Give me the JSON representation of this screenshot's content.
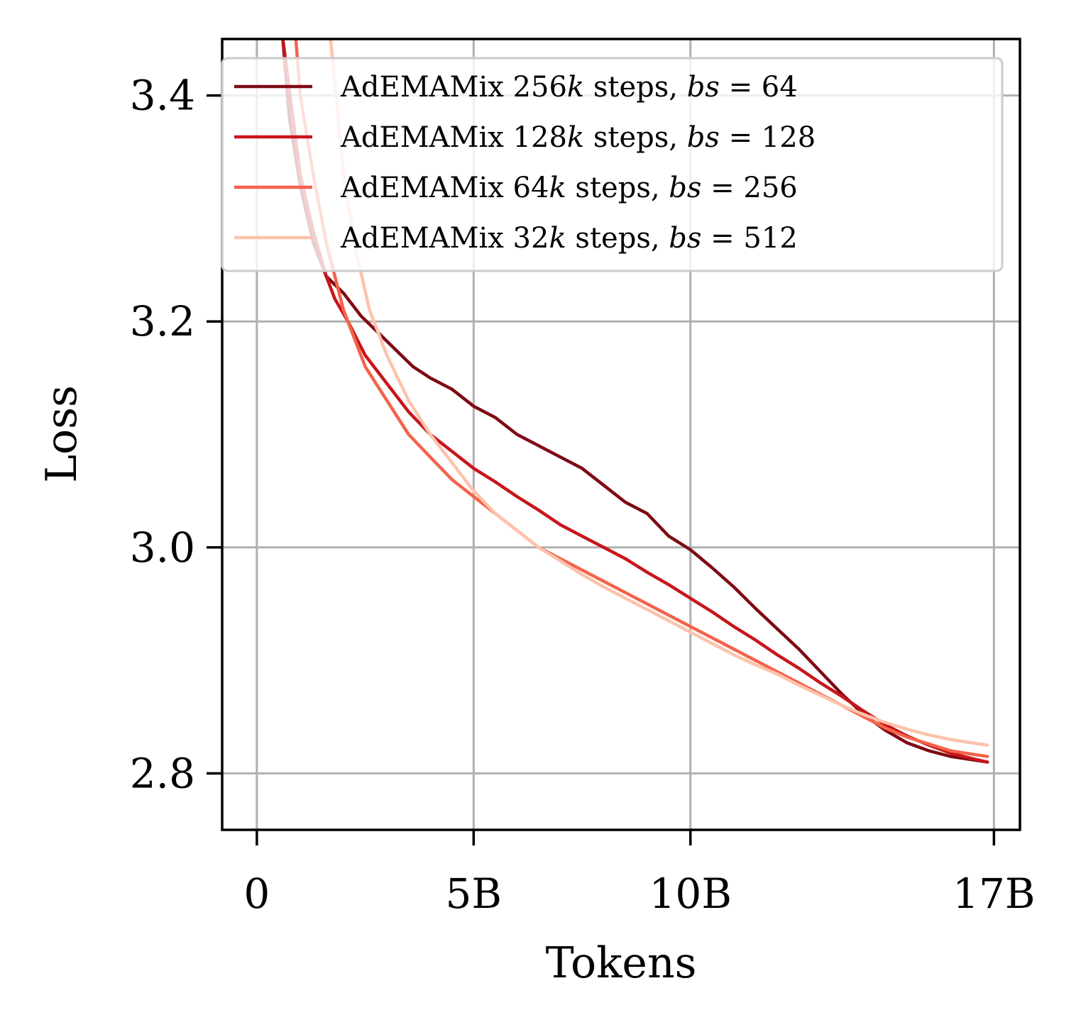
{
  "chart_data": {
    "type": "line",
    "title": "",
    "xlabel": "Tokens",
    "ylabel": "Loss",
    "xlim": [
      -0.8,
      17.6
    ],
    "ylim": [
      2.75,
      3.45
    ],
    "xticks": [
      {
        "value": 0,
        "label": "0"
      },
      {
        "value": 5,
        "label": "5B"
      },
      {
        "value": 10,
        "label": "10B"
      },
      {
        "value": 17,
        "label": "17B"
      }
    ],
    "yticks": [
      {
        "value": 2.8,
        "label": "2.8"
      },
      {
        "value": 3.0,
        "label": "3.0"
      },
      {
        "value": 3.2,
        "label": "3.2"
      },
      {
        "value": 3.4,
        "label": "3.4"
      }
    ],
    "grid": true,
    "legend_position": "top-right",
    "series": [
      {
        "name": "AdEMAMix 256k steps, bs = 64",
        "legend": {
          "pre": "AdEMAMix 256",
          "k": "k",
          "mid": " steps, ",
          "bs": "bs",
          "post": " = 64"
        },
        "color": "#7f0a14",
        "points": [
          [
            0.6,
            3.45
          ],
          [
            0.75,
            3.38
          ],
          [
            1.0,
            3.32
          ],
          [
            1.3,
            3.27
          ],
          [
            1.6,
            3.24
          ],
          [
            2.0,
            3.225
          ],
          [
            2.4,
            3.205
          ],
          [
            2.8,
            3.19
          ],
          [
            3.2,
            3.175
          ],
          [
            3.6,
            3.16
          ],
          [
            4.0,
            3.15
          ],
          [
            4.5,
            3.14
          ],
          [
            5.0,
            3.125
          ],
          [
            5.5,
            3.115
          ],
          [
            6.0,
            3.1
          ],
          [
            6.5,
            3.09
          ],
          [
            7.0,
            3.08
          ],
          [
            7.5,
            3.07
          ],
          [
            8.0,
            3.055
          ],
          [
            8.5,
            3.04
          ],
          [
            9.0,
            3.03
          ],
          [
            9.5,
            3.01
          ],
          [
            10.0,
            2.998
          ],
          [
            10.5,
            2.982
          ],
          [
            11.0,
            2.965
          ],
          [
            11.5,
            2.946
          ],
          [
            12.0,
            2.928
          ],
          [
            12.5,
            2.91
          ],
          [
            13.0,
            2.89
          ],
          [
            13.5,
            2.87
          ],
          [
            14.0,
            2.852
          ],
          [
            14.5,
            2.838
          ],
          [
            15.0,
            2.827
          ],
          [
            15.5,
            2.82
          ],
          [
            16.0,
            2.815
          ],
          [
            16.5,
            2.812
          ],
          [
            16.85,
            2.81
          ]
        ]
      },
      {
        "name": "AdEMAMix 128k steps, bs = 128",
        "legend": {
          "pre": "AdEMAMix 128",
          "k": "k",
          "mid": " steps, ",
          "bs": "bs",
          "post": " = 128"
        },
        "color": "#c8151b",
        "points": [
          [
            0.6,
            3.45
          ],
          [
            0.8,
            3.39
          ],
          [
            1.0,
            3.33
          ],
          [
            1.3,
            3.28
          ],
          [
            1.6,
            3.24
          ],
          [
            1.8,
            3.22
          ],
          [
            2.1,
            3.2
          ],
          [
            2.5,
            3.17
          ],
          [
            3.0,
            3.145
          ],
          [
            3.5,
            3.12
          ],
          [
            4.0,
            3.1
          ],
          [
            4.5,
            3.085
          ],
          [
            5.0,
            3.07
          ],
          [
            5.5,
            3.058
          ],
          [
            6.0,
            3.045
          ],
          [
            6.5,
            3.033
          ],
          [
            7.0,
            3.02
          ],
          [
            7.5,
            3.01
          ],
          [
            8.0,
            3.0
          ],
          [
            8.5,
            2.99
          ],
          [
            9.0,
            2.978
          ],
          [
            9.5,
            2.967
          ],
          [
            10.0,
            2.955
          ],
          [
            10.5,
            2.943
          ],
          [
            11.0,
            2.93
          ],
          [
            11.5,
            2.918
          ],
          [
            12.0,
            2.905
          ],
          [
            12.5,
            2.893
          ],
          [
            13.0,
            2.88
          ],
          [
            13.5,
            2.868
          ],
          [
            14.0,
            2.855
          ],
          [
            14.5,
            2.843
          ],
          [
            15.0,
            2.833
          ],
          [
            15.5,
            2.825
          ],
          [
            16.0,
            2.818
          ],
          [
            16.5,
            2.813
          ],
          [
            16.85,
            2.81
          ]
        ]
      },
      {
        "name": "AdEMAMix 64k steps, bs = 256",
        "legend": {
          "pre": "AdEMAMix 64",
          "k": "k",
          "mid": " steps, ",
          "bs": "bs",
          "post": " = 256"
        },
        "color": "#f4634a",
        "points": [
          [
            0.9,
            3.45
          ],
          [
            1.0,
            3.4
          ],
          [
            1.3,
            3.33
          ],
          [
            1.6,
            3.27
          ],
          [
            2.0,
            3.21
          ],
          [
            2.5,
            3.16
          ],
          [
            3.0,
            3.13
          ],
          [
            3.5,
            3.1
          ],
          [
            4.0,
            3.08
          ],
          [
            4.5,
            3.06
          ],
          [
            5.0,
            3.045
          ],
          [
            5.5,
            3.03
          ],
          [
            6.0,
            3.015
          ],
          [
            6.5,
            3.0
          ],
          [
            7.0,
            2.99
          ],
          [
            7.5,
            2.98
          ],
          [
            8.0,
            2.97
          ],
          [
            8.5,
            2.96
          ],
          [
            9.0,
            2.95
          ],
          [
            9.5,
            2.94
          ],
          [
            10.0,
            2.93
          ],
          [
            10.5,
            2.92
          ],
          [
            11.0,
            2.91
          ],
          [
            11.5,
            2.9
          ],
          [
            12.0,
            2.89
          ],
          [
            12.5,
            2.88
          ],
          [
            13.0,
            2.87
          ],
          [
            13.5,
            2.86
          ],
          [
            14.0,
            2.85
          ],
          [
            14.5,
            2.84
          ],
          [
            15.0,
            2.832
          ],
          [
            15.5,
            2.826
          ],
          [
            16.0,
            2.82
          ],
          [
            16.5,
            2.817
          ],
          [
            16.85,
            2.815
          ]
        ]
      },
      {
        "name": "AdEMAMix 32k steps, bs = 512",
        "legend": {
          "pre": "AdEMAMix 32",
          "k": "k",
          "mid": " steps, ",
          "bs": "bs",
          "post": " = 512"
        },
        "color": "#fcc3ac",
        "points": [
          [
            1.7,
            3.45
          ],
          [
            2.0,
            3.33
          ],
          [
            2.3,
            3.26
          ],
          [
            2.6,
            3.21
          ],
          [
            3.0,
            3.17
          ],
          [
            3.5,
            3.13
          ],
          [
            4.0,
            3.1
          ],
          [
            4.5,
            3.075
          ],
          [
            5.0,
            3.05
          ],
          [
            5.5,
            3.03
          ],
          [
            6.0,
            3.015
          ],
          [
            6.5,
            3.0
          ],
          [
            7.0,
            2.988
          ],
          [
            7.5,
            2.976
          ],
          [
            8.0,
            2.965
          ],
          [
            8.5,
            2.955
          ],
          [
            9.0,
            2.945
          ],
          [
            9.5,
            2.935
          ],
          [
            10.0,
            2.925
          ],
          [
            10.5,
            2.915
          ],
          [
            11.0,
            2.905
          ],
          [
            11.5,
            2.896
          ],
          [
            12.0,
            2.888
          ],
          [
            12.5,
            2.878
          ],
          [
            13.0,
            2.869
          ],
          [
            13.5,
            2.86
          ],
          [
            14.0,
            2.852
          ],
          [
            14.5,
            2.845
          ],
          [
            15.0,
            2.839
          ],
          [
            15.5,
            2.834
          ],
          [
            16.0,
            2.83
          ],
          [
            16.5,
            2.827
          ],
          [
            16.85,
            2.825
          ]
        ]
      }
    ]
  }
}
